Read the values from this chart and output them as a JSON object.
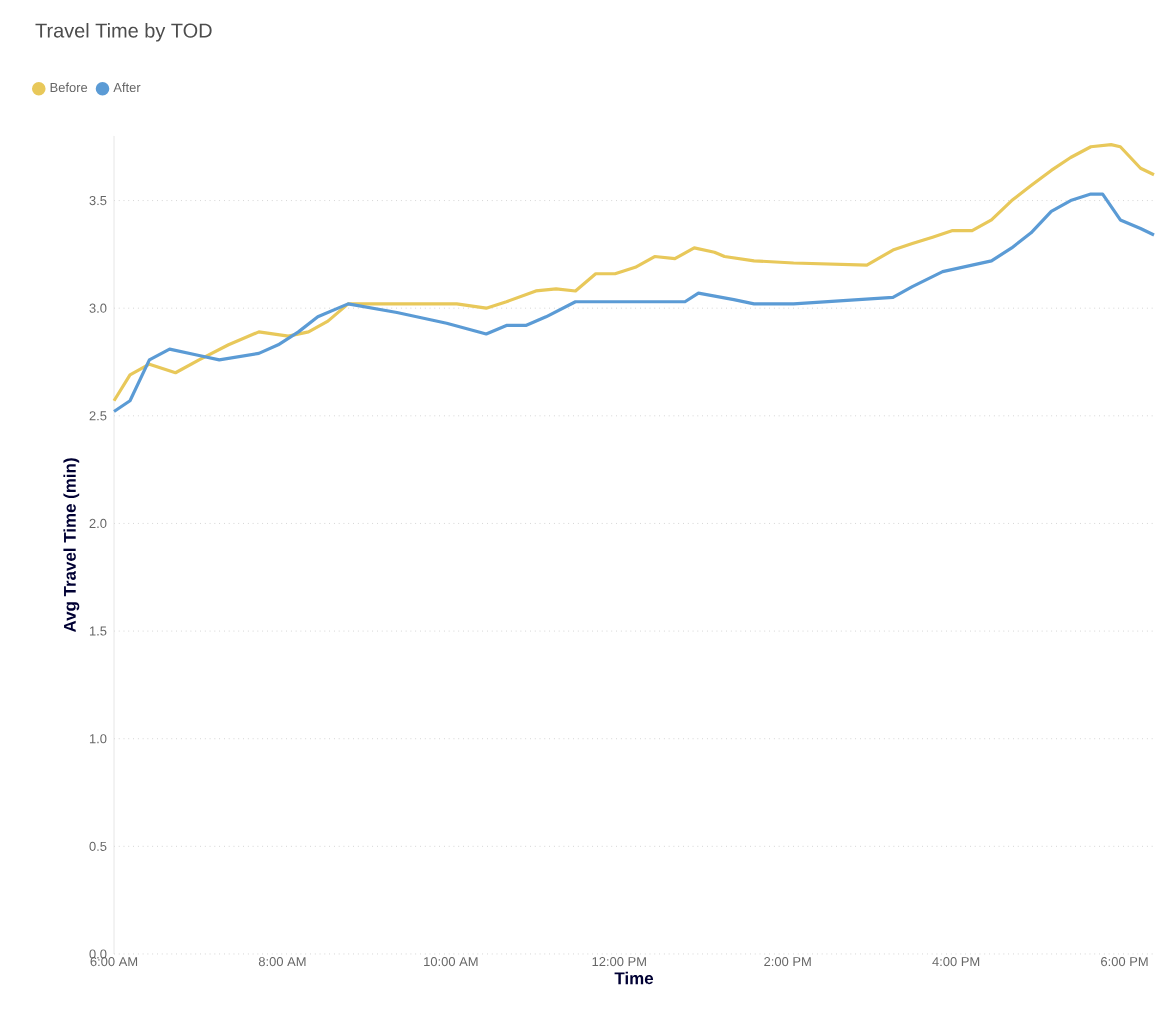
{
  "chart_data": {
    "type": "line",
    "title": "Travel Time by TOD",
    "xlabel": "Time",
    "ylabel": "Avg Travel Time (min)",
    "xlim": [
      6,
      18.35
    ],
    "ylim": [
      0,
      3.8
    ],
    "xticks": [
      {
        "value": 6,
        "label": "6:00 AM"
      },
      {
        "value": 8,
        "label": "8:00 AM"
      },
      {
        "value": 10,
        "label": "10:00 AM"
      },
      {
        "value": 12,
        "label": "12:00 PM"
      },
      {
        "value": 14,
        "label": "2:00 PM"
      },
      {
        "value": 16,
        "label": "4:00 PM"
      },
      {
        "value": 18,
        "label": "6:00 PM"
      }
    ],
    "yticks": [
      {
        "value": 0,
        "label": "0.0"
      },
      {
        "value": 0.5,
        "label": "0.5"
      },
      {
        "value": 1,
        "label": "1.0"
      },
      {
        "value": 1.5,
        "label": "1.5"
      },
      {
        "value": 2,
        "label": "2.0"
      },
      {
        "value": 2.5,
        "label": "2.5"
      },
      {
        "value": 3,
        "label": "3.0"
      },
      {
        "value": 3.5,
        "label": "3.5"
      }
    ],
    "grid": "y",
    "legend": "top left",
    "marker": "none",
    "line_style": "solid",
    "series": [
      {
        "name": "Before",
        "color": "#e8c85a",
        "x": [
          6.0,
          6.19,
          6.42,
          6.73,
          7.01,
          7.36,
          7.72,
          8.07,
          8.31,
          8.54,
          8.78,
          9.36,
          10.07,
          10.42,
          10.66,
          11.01,
          11.25,
          11.48,
          11.72,
          11.95,
          12.19,
          12.42,
          12.66,
          12.89,
          13.13,
          13.25,
          13.6,
          14.07,
          14.94,
          15.25,
          15.48,
          15.72,
          15.95,
          16.19,
          16.42,
          16.66,
          16.89,
          17.13,
          17.36,
          17.6,
          17.84,
          17.95,
          18.19,
          18.35
        ],
        "values": [
          2.57,
          2.69,
          2.74,
          2.7,
          2.76,
          2.83,
          2.89,
          2.87,
          2.89,
          2.94,
          3.02,
          3.02,
          3.02,
          3.0,
          3.03,
          3.08,
          3.09,
          3.08,
          3.16,
          3.16,
          3.19,
          3.24,
          3.23,
          3.28,
          3.26,
          3.24,
          3.22,
          3.21,
          3.2,
          3.27,
          3.3,
          3.33,
          3.36,
          3.36,
          3.41,
          3.5,
          3.57,
          3.64,
          3.7,
          3.75,
          3.76,
          3.75,
          3.65,
          3.62
        ]
      },
      {
        "name": "After",
        "color": "#5b9bd5",
        "x": [
          6.0,
          6.19,
          6.42,
          6.66,
          7.01,
          7.25,
          7.72,
          7.95,
          8.19,
          8.42,
          8.78,
          9.36,
          9.95,
          10.42,
          10.66,
          10.89,
          11.13,
          11.48,
          12.19,
          12.78,
          12.94,
          13.36,
          13.6,
          14.07,
          15.25,
          15.48,
          15.84,
          16.19,
          16.42,
          16.66,
          16.89,
          17.13,
          17.36,
          17.6,
          17.74,
          17.95,
          18.19,
          18.35
        ],
        "values": [
          2.52,
          2.57,
          2.76,
          2.81,
          2.78,
          2.76,
          2.79,
          2.83,
          2.89,
          2.96,
          3.02,
          2.98,
          2.93,
          2.88,
          2.92,
          2.92,
          2.96,
          3.03,
          3.03,
          3.03,
          3.07,
          3.04,
          3.02,
          3.02,
          3.05,
          3.1,
          3.17,
          3.2,
          3.22,
          3.28,
          3.35,
          3.45,
          3.5,
          3.53,
          3.53,
          3.41,
          3.37,
          3.34
        ]
      }
    ]
  }
}
